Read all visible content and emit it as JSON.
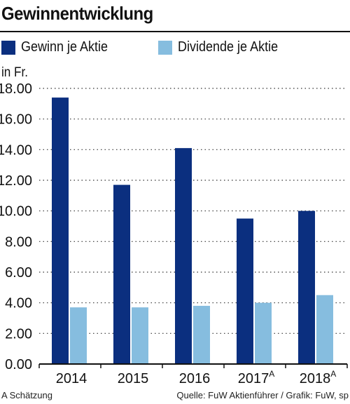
{
  "header": {
    "title": "Gewinnentwicklung"
  },
  "unit_label": "in Fr.",
  "footer": {
    "note": "A Schätzung",
    "source": "Quelle: FuW Aktienführer  / Grafik: FuW, sp"
  },
  "colors": {
    "series1": "#0b2f7f",
    "series2": "#86bddf",
    "grid": "#333333"
  },
  "chart_data": {
    "type": "bar",
    "title": "Gewinnentwicklung",
    "ylabel": "in Fr.",
    "xlabel": "",
    "categories": [
      "2014",
      "2015",
      "2016",
      "2017",
      "2018"
    ],
    "category_superscripts": [
      "",
      "",
      "",
      "A",
      "A"
    ],
    "series": [
      {
        "name": "Gewinn je Aktie",
        "values": [
          17.4,
          11.7,
          14.1,
          9.5,
          10.0
        ]
      },
      {
        "name": "Dividende je Aktie",
        "values": [
          3.7,
          3.7,
          3.8,
          4.0,
          4.5
        ]
      }
    ],
    "ylim": [
      0,
      18
    ],
    "yticks": [
      0,
      2,
      4,
      6,
      8,
      10,
      12,
      14,
      16,
      18
    ],
    "ytick_labels": [
      "0.00",
      "2.00",
      "4.00",
      "6.00",
      "8.00",
      "10.00",
      "12.00",
      "14.00",
      "16.00",
      "18.00"
    ],
    "grid": "horizontal-dotted",
    "legend": "top-left"
  }
}
